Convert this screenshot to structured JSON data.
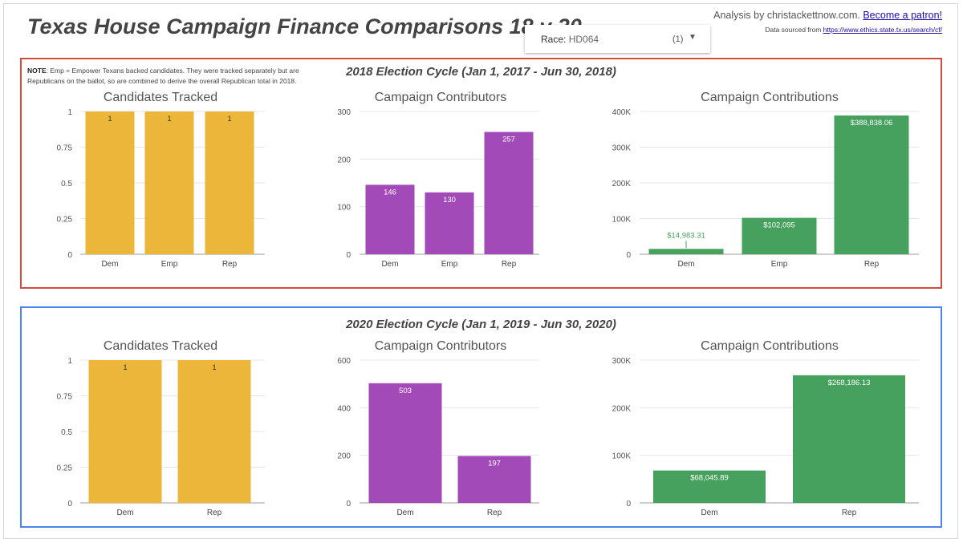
{
  "header": {
    "title": "Texas House Campaign Finance Comparisons 18 v 20",
    "race_label": "Race:",
    "race_value": "HD064",
    "race_count": "(1)",
    "analysis_text": "Analysis by christackettnow.com.",
    "patron_link": "Become a patron!",
    "source_text": "Data sourced from",
    "source_link": "https://www.ethics.state.tx.us/search/cf/"
  },
  "note": {
    "label": "NOTE",
    "text": ": Emp = Empower Texans backed candidates. They were tracked separately but are Republicans on the ballot, so are combined to derive the overall Republican total in 2018."
  },
  "cycles": {
    "c2018": {
      "title": "2018 Election Cycle (Jan 1, 2017 - Jun 30, 2018)"
    },
    "c2020": {
      "title": "2020 Election Cycle (Jan 1, 2019 - Jun 30, 2020)"
    }
  },
  "colors": {
    "yellow": "#ecb63a",
    "purple": "#a24bb8",
    "green": "#46a05e",
    "red_border": "#d4493a",
    "blue_border": "#4a86e8"
  },
  "chart_data": [
    {
      "type": "bar",
      "title": "Candidates Tracked",
      "cycle": "2018",
      "categories": [
        "Dem",
        "Emp",
        "Rep"
      ],
      "values": [
        1,
        1,
        1
      ],
      "labels": [
        "1",
        "1",
        "1"
      ],
      "ylim": [
        0,
        1
      ],
      "yticks": [
        0,
        0.25,
        0.5,
        0.75,
        1
      ],
      "yticklabels": [
        "0",
        "0.25",
        "0.5",
        "0.75",
        "1"
      ],
      "color": "#ecb63a"
    },
    {
      "type": "bar",
      "title": "Campaign Contributors",
      "cycle": "2018",
      "categories": [
        "Dem",
        "Emp",
        "Rep"
      ],
      "values": [
        146,
        130,
        257
      ],
      "labels": [
        "146",
        "130",
        "257"
      ],
      "ylim": [
        0,
        300
      ],
      "yticks": [
        0,
        100,
        200,
        300
      ],
      "yticklabels": [
        "0",
        "100",
        "200",
        "300"
      ],
      "color": "#a24bb8"
    },
    {
      "type": "bar",
      "title": "Campaign Contributions",
      "cycle": "2018",
      "categories": [
        "Dem",
        "Emp",
        "Rep"
      ],
      "values": [
        14983.31,
        102095,
        388838.06
      ],
      "labels": [
        "$14,983.31",
        "$102,095",
        "$388,838.06"
      ],
      "ylim": [
        0,
        400000
      ],
      "yticks": [
        0,
        100000,
        200000,
        300000,
        400000
      ],
      "yticklabels": [
        "0",
        "100K",
        "200K",
        "300K",
        "400K"
      ],
      "color": "#46a05e"
    },
    {
      "type": "bar",
      "title": "Candidates Tracked",
      "cycle": "2020",
      "categories": [
        "Dem",
        "Rep"
      ],
      "values": [
        1,
        1
      ],
      "labels": [
        "1",
        "1"
      ],
      "ylim": [
        0,
        1
      ],
      "yticks": [
        0,
        0.25,
        0.5,
        0.75,
        1
      ],
      "yticklabels": [
        "0",
        "0.25",
        "0.5",
        "0.75",
        "1"
      ],
      "color": "#ecb63a"
    },
    {
      "type": "bar",
      "title": "Campaign Contributors",
      "cycle": "2020",
      "categories": [
        "Dem",
        "Rep"
      ],
      "values": [
        503,
        197
      ],
      "labels": [
        "503",
        "197"
      ],
      "ylim": [
        0,
        600
      ],
      "yticks": [
        0,
        200,
        400,
        600
      ],
      "yticklabels": [
        "0",
        "200",
        "400",
        "600"
      ],
      "color": "#a24bb8"
    },
    {
      "type": "bar",
      "title": "Campaign Contributions",
      "cycle": "2020",
      "categories": [
        "Dem",
        "Rep"
      ],
      "values": [
        68045.89,
        268186.13
      ],
      "labels": [
        "$68,045.89",
        "$268,186.13"
      ],
      "ylim": [
        0,
        300000
      ],
      "yticks": [
        0,
        100000,
        200000,
        300000
      ],
      "yticklabels": [
        "0",
        "100K",
        "200K",
        "300K"
      ],
      "color": "#46a05e"
    }
  ]
}
